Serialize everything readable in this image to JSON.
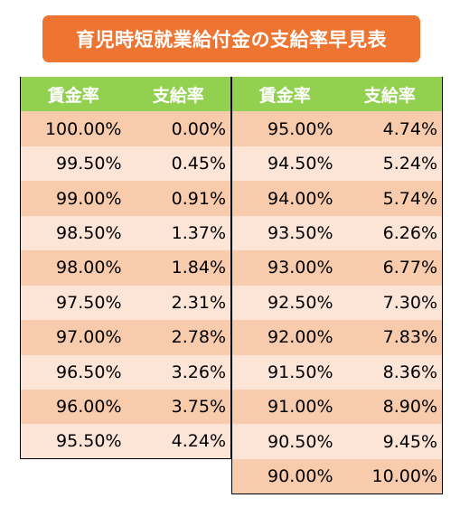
{
  "title": "育児時短就業給付金の支給率早見表",
  "colors": {
    "title_bg": "#ed7531",
    "header_bg": "#92d050",
    "row_dark": "#f8cbad",
    "row_light": "#fce4d6"
  },
  "left_table": {
    "headers": [
      "賃金率",
      "支給率"
    ],
    "rows": [
      [
        "100.00%",
        "0.00%"
      ],
      [
        "99.50%",
        "0.45%"
      ],
      [
        "99.00%",
        "0.91%"
      ],
      [
        "98.50%",
        "1.37%"
      ],
      [
        "98.00%",
        "1.84%"
      ],
      [
        "97.50%",
        "2.31%"
      ],
      [
        "97.00%",
        "2.78%"
      ],
      [
        "96.50%",
        "3.26%"
      ],
      [
        "96.00%",
        "3.75%"
      ],
      [
        "95.50%",
        "4.24%"
      ]
    ]
  },
  "right_table": {
    "headers": [
      "賃金率",
      "支給率"
    ],
    "rows": [
      [
        "95.00%",
        "4.74%"
      ],
      [
        "94.50%",
        "5.24%"
      ],
      [
        "94.00%",
        "5.74%"
      ],
      [
        "93.50%",
        "6.26%"
      ],
      [
        "93.00%",
        "6.77%"
      ],
      [
        "92.50%",
        "7.30%"
      ],
      [
        "92.00%",
        "7.83%"
      ],
      [
        "91.50%",
        "8.36%"
      ],
      [
        "91.00%",
        "8.90%"
      ],
      [
        "90.50%",
        "9.45%"
      ],
      [
        "90.00%",
        "10.00%"
      ]
    ]
  }
}
